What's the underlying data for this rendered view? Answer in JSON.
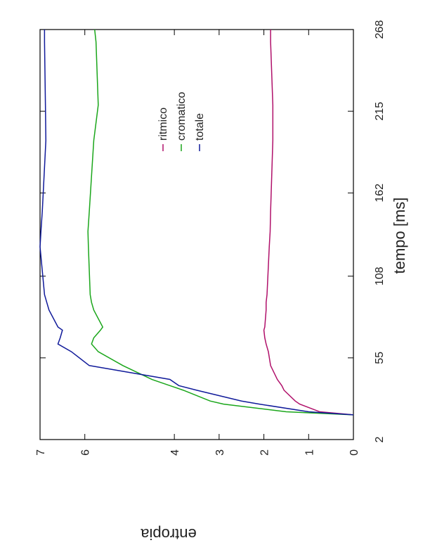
{
  "chart_data": {
    "type": "line",
    "xlabel": "tempo [ms]",
    "ylabel": "entropia",
    "xlim": [
      2,
      268
    ],
    "xticks": [
      2,
      55,
      108,
      162,
      215,
      268
    ],
    "ylim": [
      0,
      7
    ],
    "yticks": [
      0,
      1,
      2,
      3,
      4,
      6,
      7
    ],
    "x": [
      18,
      20,
      25,
      27,
      34,
      37,
      41,
      50,
      59,
      64,
      68,
      73,
      75,
      86,
      91,
      96,
      127,
      137,
      150,
      196,
      219,
      260,
      268
    ],
    "series": [
      {
        "name": "ritmico",
        "color": "#b0106a",
        "values": [
          0,
          0.75,
          1.2,
          1.3,
          1.55,
          1.6,
          1.7,
          1.85,
          1.9,
          1.95,
          1.98,
          2.0,
          1.98,
          1.95,
          1.95,
          1.93,
          1.88,
          1.86,
          1.85,
          1.8,
          1.8,
          1.85,
          1.85
        ]
      },
      {
        "name": "cromatico",
        "color": "#1aa61a",
        "values": [
          0,
          1.5,
          2.9,
          3.2,
          3.8,
          4.1,
          4.5,
          5.15,
          5.7,
          5.85,
          5.8,
          5.65,
          5.6,
          5.8,
          5.85,
          5.88,
          5.92,
          5.93,
          5.9,
          5.8,
          5.7,
          5.75,
          5.78
        ]
      },
      {
        "name": "totale",
        "color": "#101a9a",
        "values": [
          0,
          1.0,
          2.1,
          2.5,
          3.5,
          3.9,
          4.1,
          5.9,
          6.3,
          6.6,
          6.55,
          6.5,
          6.6,
          6.8,
          6.85,
          6.9,
          7.0,
          6.98,
          6.95,
          6.87,
          6.88,
          6.9,
          6.9
        ]
      }
    ]
  }
}
